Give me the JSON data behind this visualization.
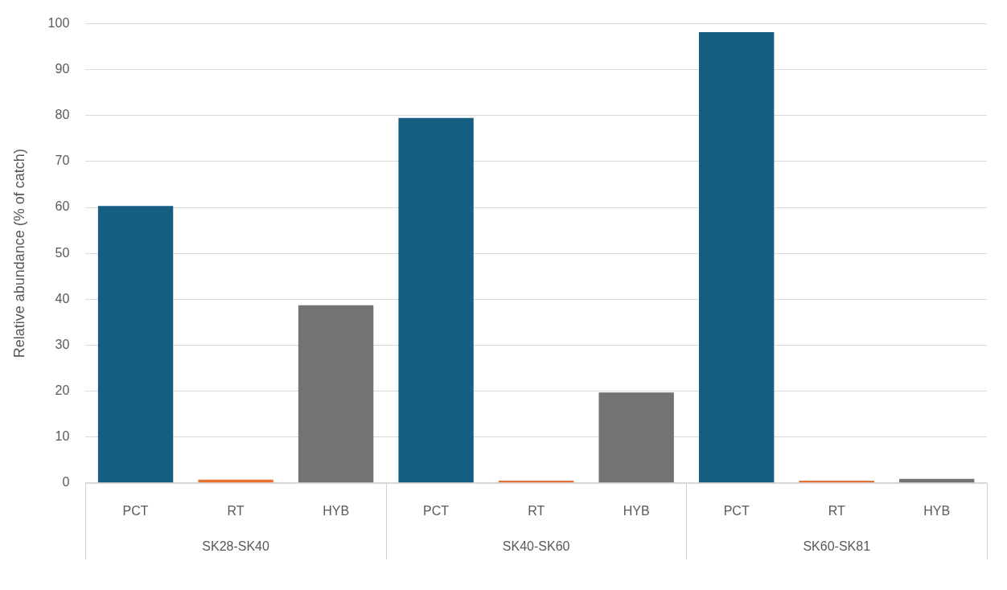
{
  "chart_data": {
    "type": "bar",
    "ylabel": "Relative abundance (% of catch)",
    "categories": [
      "PCT",
      "RT",
      "HYB",
      "PCT",
      "RT",
      "HYB",
      "PCT",
      "RT",
      "HYB"
    ],
    "values": [
      60.3,
      0.7,
      38.7,
      79.5,
      0.5,
      19.7,
      98.2,
      0.5,
      0.9
    ],
    "colors": [
      "#175e83",
      "#e9712f",
      "#737373",
      "#175e83",
      "#e9712f",
      "#737373",
      "#175e83",
      "#e9712f",
      "#737373"
    ],
    "annotations": [
      "SK28-SK40",
      "SK40-SK60",
      "SK60-SK81"
    ],
    "ylim": [
      0,
      100
    ],
    "yticks": [
      0,
      10,
      20,
      30,
      40,
      50,
      60,
      70,
      80,
      90,
      100
    ],
    "grid": "y",
    "legend": false
  }
}
